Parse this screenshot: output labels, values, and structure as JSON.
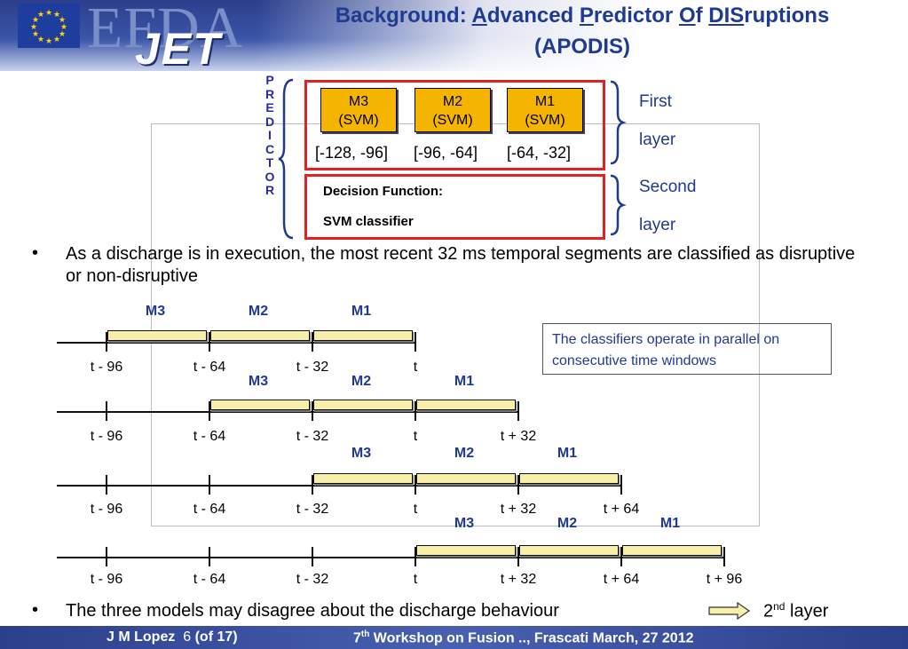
{
  "header": {
    "title_line1_parts": [
      "Background: ",
      "A",
      "dvanced ",
      "P",
      "redictor ",
      "O",
      "f ",
      "DIS",
      "ruptions"
    ],
    "title_line2": "(APODIS)",
    "logo_text_efda": "EFDA",
    "logo_text_jet": "JET"
  },
  "predictor": {
    "side_label": [
      "P",
      "R",
      "E",
      "D",
      "I",
      "C",
      "T",
      "O",
      "R"
    ],
    "models": [
      {
        "name": "M3",
        "kind": "(SVM)",
        "range": "[-128, -96]"
      },
      {
        "name": "M2",
        "kind": "(SVM)",
        "range": "[-96, -64]"
      },
      {
        "name": "M1",
        "kind": "(SVM)",
        "range": "[-64, -32]"
      }
    ],
    "decision_line1": "Decision Function:",
    "decision_line2": "SVM classifier",
    "first_layer": [
      "First",
      "layer"
    ],
    "second_layer": [
      "Second",
      "layer"
    ],
    "accent_red": "#e52020",
    "model_fill": "#f5b400"
  },
  "bullets": [
    "As a discharge is in execution, the most recent 32 ms temporal segments are classified as disruptive or non-disruptive",
    "The three models may disagree about the discharge behaviour"
  ],
  "bullet_symbol": "•",
  "second_layer_note": {
    "prefix": "2",
    "sup": "nd",
    "suffix": " layer"
  },
  "arrow_icon": "right-arrow-icon",
  "note": "The classifiers operate in parallel on consecutive time windows",
  "timelines": [
    {
      "models": [
        "M3",
        "M2",
        "M1"
      ],
      "ticks": [
        "t - 96",
        "t - 64",
        "t - 32",
        "t"
      ]
    },
    {
      "models": [
        "M3",
        "M2",
        "M1"
      ],
      "ticks": [
        "t - 96",
        "t - 64",
        "t - 32",
        "t",
        "t + 32"
      ]
    },
    {
      "models": [
        "M3",
        "M2",
        "M1"
      ],
      "ticks": [
        "t - 96",
        "t - 64",
        "t - 32",
        "t",
        "t + 32",
        "t + 64"
      ]
    },
    {
      "models": [
        "M3",
        "M2",
        "M1"
      ],
      "ticks": [
        "t - 96",
        "t - 64",
        "t - 32",
        "t",
        "t + 32",
        "t + 64",
        "t + 96"
      ]
    }
  ],
  "footer": {
    "author": "J M Lopez",
    "page": "6",
    "of": "(of 17)",
    "event_prefix": "7",
    "event_sup": "th",
    "event_rest": " Workshop on Fusion .., Frascati  March, 27 2012"
  }
}
